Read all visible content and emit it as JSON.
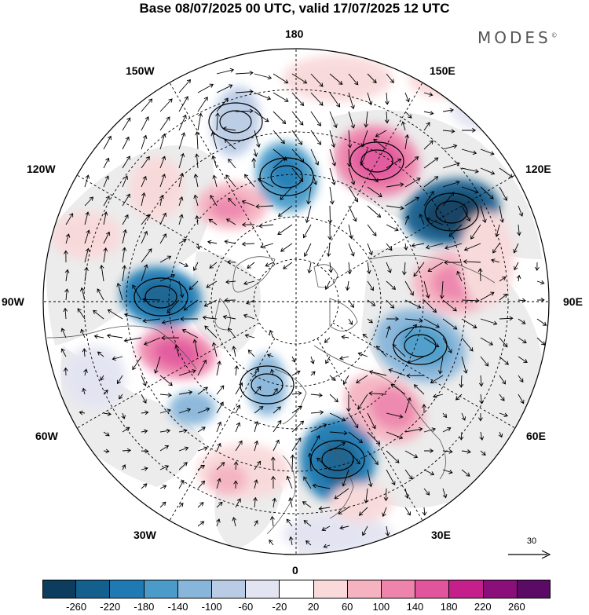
{
  "title": "Base 08/07/2025 00 UTC, valid 17/07/2025 12 UTC",
  "brand": "MODES",
  "brand_mark": "©",
  "longitude_labels": {
    "n180": "180",
    "n150e": "150E",
    "n120e": "120E",
    "n90e": "90E",
    "n60e": "60E",
    "n30e": "30E",
    "n0": "0",
    "n30w": "30W",
    "n60w": "60W",
    "n90w": "90W",
    "n120w": "120W",
    "n150w": "150W"
  },
  "reference_vector": {
    "label": "30",
    "icon": "arrow-right-icon"
  },
  "colorbar": {
    "colors": [
      "#0d3d5e",
      "#135f8e",
      "#1f7ab3",
      "#4a9bc9",
      "#88b6da",
      "#b9cbe5",
      "#e3e4f2",
      "#ffffff",
      "#f9d9da",
      "#f5b3c1",
      "#ee84ac",
      "#e2559c",
      "#c41f8a",
      "#8a0f7a",
      "#5b0a66"
    ],
    "ticks": [
      "-260",
      "-220",
      "-180",
      "-140",
      "-100",
      "-60",
      "-20",
      "20",
      "60",
      "100",
      "140",
      "180",
      "220",
      "260"
    ]
  },
  "map_colors": {
    "land_fill": "#ececec",
    "ocean_fill": "#ffffff",
    "coastline": "#555555",
    "graticule": "#000000"
  }
}
